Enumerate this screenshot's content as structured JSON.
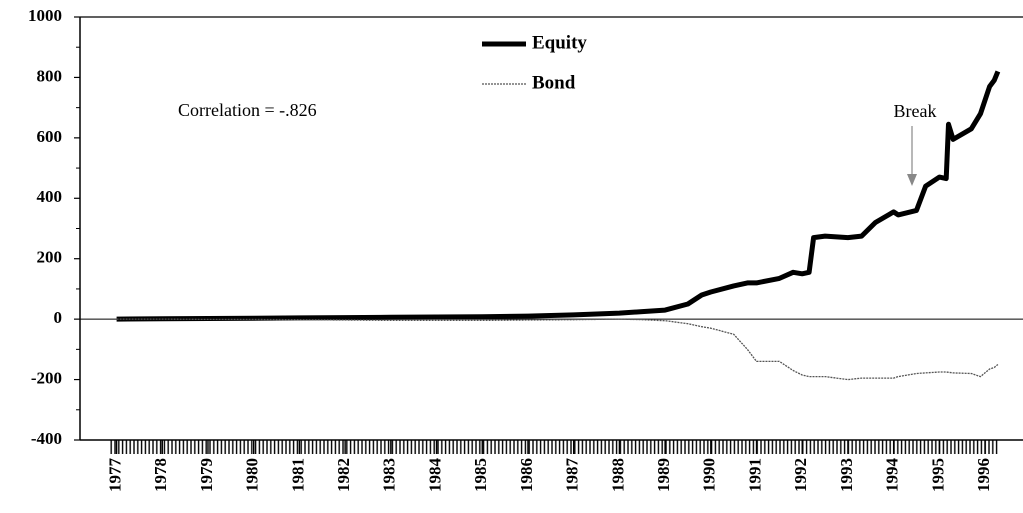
{
  "chart_data": {
    "type": "line",
    "annotations": [
      "Correlation = -.826",
      "Break"
    ],
    "x": [
      1977,
      1978,
      1979,
      1980,
      1981,
      1982,
      1983,
      1984,
      1985,
      1986,
      1987,
      1988,
      1988.5,
      1989,
      1989.5,
      1989.8,
      1990,
      1990.5,
      1990.8,
      1991,
      1991.5,
      1991.8,
      1992,
      1992.15,
      1992.25,
      1992.5,
      1993,
      1993.3,
      1993.6,
      1994,
      1994.1,
      1994.5,
      1994.7,
      1995,
      1995.15,
      1995.2,
      1995.3,
      1995.7,
      1995.9,
      1996.1,
      1996.2,
      1996.28
    ],
    "series": [
      {
        "name": "Equity",
        "color": "#000000",
        "values": [
          0,
          1,
          2,
          3,
          4,
          5,
          6,
          7,
          8,
          10,
          14,
          20,
          25,
          30,
          50,
          80,
          90,
          110,
          120,
          120,
          135,
          155,
          150,
          155,
          270,
          275,
          270,
          275,
          320,
          355,
          345,
          360,
          440,
          470,
          465,
          645,
          595,
          630,
          680,
          770,
          790,
          820
        ]
      },
      {
        "name": "Bond",
        "color": "#555555",
        "values": [
          0,
          0,
          -1,
          -1,
          -2,
          -3,
          -4,
          -4,
          -4,
          -3,
          -2,
          0,
          -2,
          -5,
          -15,
          -25,
          -30,
          -50,
          -100,
          -140,
          -140,
          -170,
          -185,
          -190,
          -190,
          -190,
          -200,
          -195,
          -195,
          -195,
          -190,
          -180,
          -178,
          -175,
          -175,
          -176,
          -178,
          -180,
          -190,
          -165,
          -160,
          -150
        ]
      }
    ],
    "xlim": [
      1976.2,
      1996.83
    ],
    "xticks": [
      1977,
      1978,
      1979,
      1980,
      1981,
      1982,
      1983,
      1984,
      1985,
      1986,
      1987,
      1988,
      1989,
      1990,
      1991,
      1992,
      1993,
      1994,
      1995,
      1996
    ],
    "ylim": [
      -400,
      1000
    ],
    "yticks": [
      -400,
      -200,
      0,
      200,
      400,
      600,
      800,
      1000
    ]
  }
}
